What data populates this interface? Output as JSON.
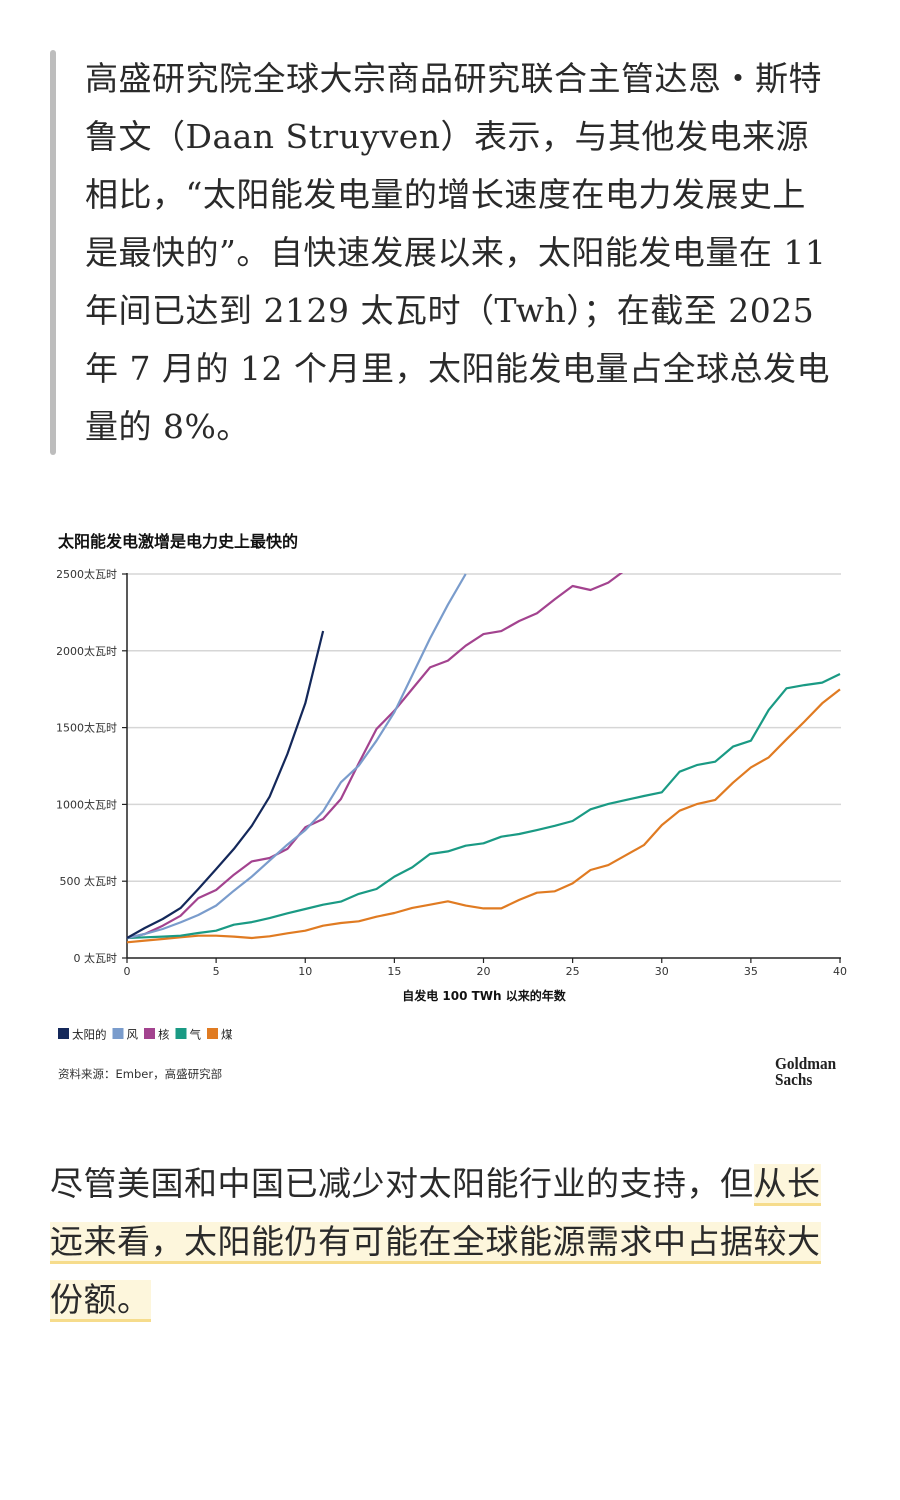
{
  "quote": {
    "lines": [
      "高盛研究院全球大宗商品研究联合主管达恩・斯特",
      "鲁文（Daan Struyven）表示，与其他发电来源",
      "相比，“太阳能发电量的增长速度在电力发展史上",
      "是最快的”。自快速发展以来，太阳能发电量在 11",
      "年间已达到 2129 太瓦时（Twh）；在截至 2025",
      "年 7 月的 12 个月里，太阳能发电量占全球总发电",
      "量的 8%。"
    ]
  },
  "chart_data": {
    "type": "line",
    "title": "太阳能发电激增是电力史上最快的",
    "xlabel": "自发电 100 TWh 以来的年数",
    "ylabel": "",
    "xlim": [
      0,
      40
    ],
    "ylim": [
      0,
      2500
    ],
    "x_ticks": [
      0,
      5,
      10,
      15,
      20,
      25,
      30,
      35,
      40
    ],
    "y_ticks": [
      0,
      500,
      1000,
      1500,
      2000,
      2500
    ],
    "y_tick_labels": [
      "0 太瓦时",
      "500 太瓦时",
      "1000太瓦时",
      "1500太瓦时",
      "2000太瓦时",
      "2500太瓦时"
    ],
    "grid": "horizontal",
    "legend_placement": "bottom-left",
    "series": [
      {
        "name": "太阳的",
        "color": "#14285a",
        "values": [
          130,
          195,
          254,
          325,
          449,
          579,
          710,
          861,
          1050,
          1328,
          1658,
          2129
        ]
      },
      {
        "name": "风",
        "color": "#7a9ccc",
        "values": [
          130,
          156,
          189,
          232,
          280,
          341,
          438,
          530,
          634,
          738,
          833,
          955,
          1144,
          1252,
          1415,
          1600,
          1840,
          2080,
          2300,
          2500
        ]
      },
      {
        "name": "核",
        "color": "#a3438f",
        "values": [
          130,
          156,
          210,
          275,
          390,
          443,
          542,
          629,
          651,
          710,
          851,
          905,
          1035,
          1267,
          1491,
          1610,
          1751,
          1892,
          1936,
          2033,
          2109,
          2128,
          2194,
          2244,
          2335,
          2422,
          2396,
          2444,
          2530
        ]
      },
      {
        "name": "气",
        "color": "#1a9a84",
        "values": [
          130,
          135,
          139,
          145,
          163,
          178,
          217,
          234,
          260,
          291,
          319,
          347,
          367,
          417,
          449,
          530,
          590,
          677,
          694,
          731,
          747,
          790,
          807,
          833,
          861,
          892,
          968,
          1003,
          1029,
          1055,
          1079,
          1213,
          1257,
          1278,
          1376,
          1415,
          1615,
          1756,
          1777,
          1793,
          1849
        ]
      },
      {
        "name": "煤",
        "color": "#e07b22",
        "values": [
          102,
          113,
          124,
          135,
          145,
          145,
          139,
          130,
          141,
          161,
          178,
          210,
          228,
          239,
          269,
          293,
          326,
          347,
          369,
          341,
          323,
          323,
          378,
          425,
          434,
          486,
          573,
          605,
          670,
          735,
          865,
          959,
          1003,
          1029,
          1141,
          1241,
          1306,
          1424,
          1539,
          1658,
          1749
        ]
      }
    ],
    "source": "资料来源：Ember，高盛研究部",
    "logo": "Goldman Sachs"
  },
  "para2": {
    "plain": "尽管美国和中国已减少对太阳能行业的支持，但",
    "hl1": "从长",
    "hl2": "远来看，太阳能仍有可能在全球能源需求中占据较大",
    "hl3": "份额。"
  }
}
